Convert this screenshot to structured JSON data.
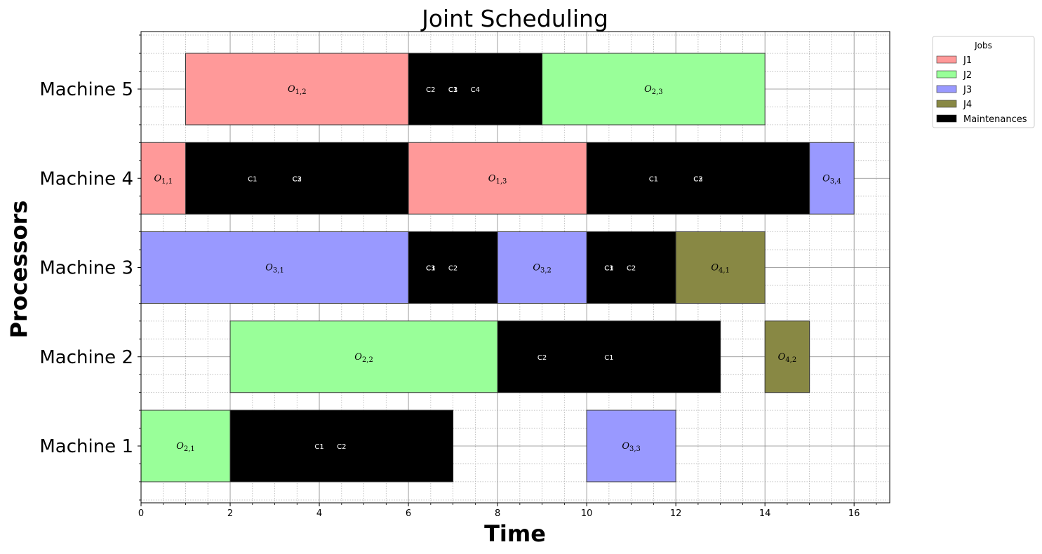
{
  "chart_data": {
    "type": "gantt",
    "title": "Joint Scheduling",
    "xlabel": "Time",
    "ylabel": "Processors",
    "xlim": [
      0,
      16.8
    ],
    "x_major_ticks": [
      0,
      2,
      4,
      6,
      8,
      10,
      12,
      14,
      16
    ],
    "x_minor_step": 0.5,
    "machines": [
      "Machine 1",
      "Machine 2",
      "Machine 3",
      "Machine 4",
      "Machine 5"
    ],
    "grid": true,
    "legend": {
      "title": "Jobs",
      "placement": "outside-top-right",
      "entries": [
        {
          "label": "J1",
          "color": "#ff9999"
        },
        {
          "label": "J2",
          "color": "#99ff99"
        },
        {
          "label": "J3",
          "color": "#9999ff"
        },
        {
          "label": "J4",
          "color": "#888844"
        },
        {
          "label": "Maintenances",
          "color": "#000000"
        }
      ]
    },
    "operations": [
      {
        "machine": 5,
        "job": 1,
        "start": 1,
        "end": 6,
        "op": "1,2"
      },
      {
        "machine": 5,
        "job": 2,
        "start": 9,
        "end": 14,
        "op": "2,3"
      },
      {
        "machine": 4,
        "job": 1,
        "start": 0,
        "end": 1,
        "op": "1,1"
      },
      {
        "machine": 4,
        "job": 1,
        "start": 6,
        "end": 10,
        "op": "1,3"
      },
      {
        "machine": 4,
        "job": 3,
        "start": 15,
        "end": 16,
        "op": "3,4"
      },
      {
        "machine": 3,
        "job": 3,
        "start": 0,
        "end": 6,
        "op": "3,1"
      },
      {
        "machine": 3,
        "job": 3,
        "start": 8,
        "end": 10,
        "op": "3,2"
      },
      {
        "machine": 3,
        "job": 4,
        "start": 12,
        "end": 14,
        "op": "4,1"
      },
      {
        "machine": 2,
        "job": 2,
        "start": 2,
        "end": 8,
        "op": "2,2"
      },
      {
        "machine": 2,
        "job": 4,
        "start": 14,
        "end": 15,
        "op": "4,2"
      },
      {
        "machine": 1,
        "job": 2,
        "start": 0,
        "end": 2,
        "op": "2,1"
      },
      {
        "machine": 1,
        "job": 3,
        "start": 10,
        "end": 12,
        "op": "3,3"
      }
    ],
    "maintenances": [
      {
        "machine": 5,
        "start": 6,
        "end": 9,
        "labels": [
          {
            "text": "C2",
            "x": 6.5
          },
          {
            "text": "C3",
            "x": 7.0
          },
          {
            "text": "C1",
            "x": 7.0
          },
          {
            "text": "C4",
            "x": 7.5
          }
        ]
      },
      {
        "machine": 4,
        "start": 1,
        "end": 6,
        "labels": [
          {
            "text": "C1",
            "x": 2.5
          },
          {
            "text": "C3",
            "x": 3.5
          },
          {
            "text": "C2",
            "x": 3.5
          }
        ]
      },
      {
        "machine": 4,
        "start": 10,
        "end": 15,
        "labels": [
          {
            "text": "C1",
            "x": 11.5
          },
          {
            "text": "C3",
            "x": 12.5
          },
          {
            "text": "C2",
            "x": 12.5
          }
        ]
      },
      {
        "machine": 3,
        "start": 6,
        "end": 8,
        "labels": [
          {
            "text": "C3",
            "x": 6.5
          },
          {
            "text": "C1",
            "x": 6.5
          },
          {
            "text": "C2",
            "x": 7.0
          }
        ]
      },
      {
        "machine": 3,
        "start": 10,
        "end": 12,
        "labels": [
          {
            "text": "C3",
            "x": 10.5
          },
          {
            "text": "C1",
            "x": 10.5
          },
          {
            "text": "C2",
            "x": 11.0
          }
        ]
      },
      {
        "machine": 2,
        "start": 8,
        "end": 13,
        "labels": [
          {
            "text": "C2",
            "x": 9.0
          },
          {
            "text": "C1",
            "x": 10.5
          }
        ]
      },
      {
        "machine": 1,
        "start": 2,
        "end": 7,
        "labels": [
          {
            "text": "C1",
            "x": 4.0
          },
          {
            "text": "C2",
            "x": 4.5
          }
        ]
      }
    ]
  }
}
